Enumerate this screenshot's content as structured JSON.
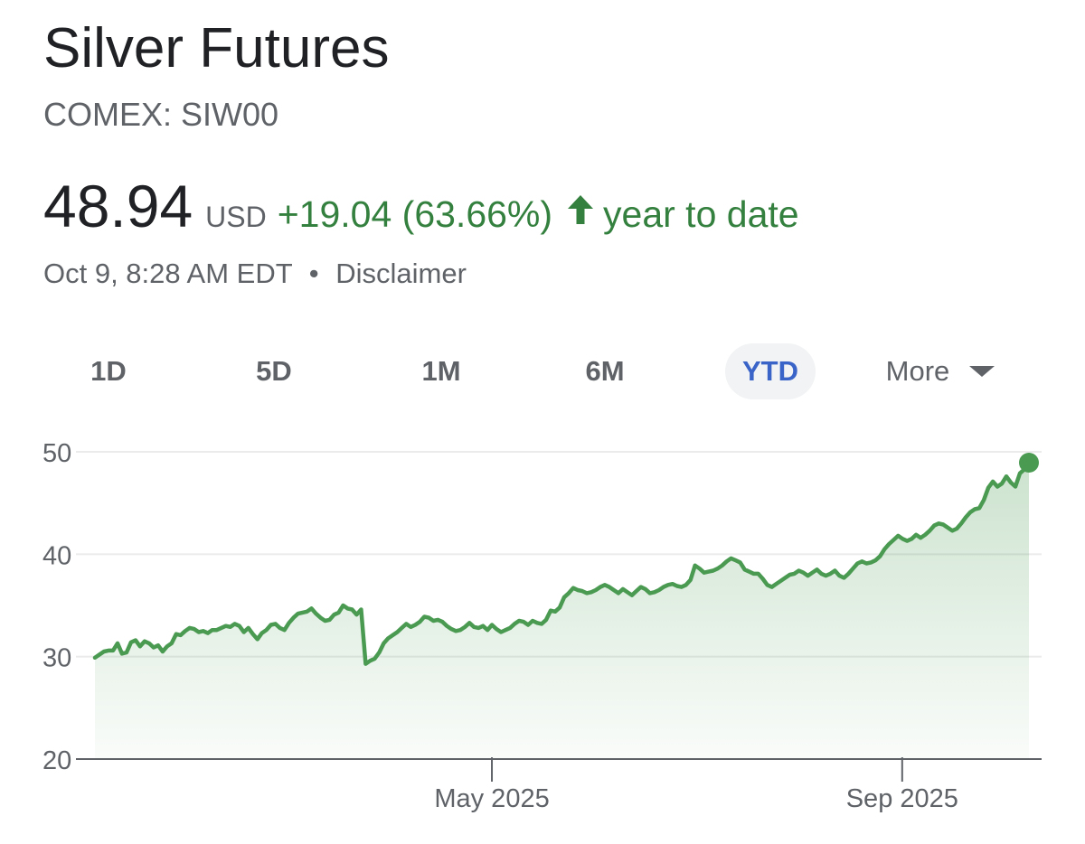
{
  "header": {
    "title": "Silver Futures",
    "ticker": "COMEX: SIW00"
  },
  "quote": {
    "price": "48.94",
    "currency": "USD",
    "change": "+19.04 (63.66%)",
    "period": "year to date",
    "timestamp": "Oct 9, 8:28 AM EDT",
    "separator": "•",
    "disclaimer": "Disclaimer"
  },
  "icons": {
    "change_arrow": "arrow-up-icon",
    "more_caret": "caret-down-icon"
  },
  "colors": {
    "positive": "#34803e",
    "line": "#4a9a52",
    "active_tab": "#3b64c8",
    "muted": "#5f6368"
  },
  "range_tabs": [
    {
      "label": "1D",
      "active": false
    },
    {
      "label": "5D",
      "active": false
    },
    {
      "label": "1M",
      "active": false
    },
    {
      "label": "6M",
      "active": false
    },
    {
      "label": "YTD",
      "active": true
    },
    {
      "label": "More",
      "active": false
    }
  ],
  "chart_data": {
    "type": "area",
    "title": "",
    "xlabel": "",
    "ylabel": "",
    "ylim": [
      20,
      50
    ],
    "yticks": [
      "20",
      "30",
      "40",
      "50"
    ],
    "xticks": [
      {
        "label": "May 2025",
        "date": "2025-05-01"
      },
      {
        "label": "Sep 2025",
        "date": "2025-09-01"
      }
    ],
    "x_start": "2025-01-02",
    "x_end": "2025-10-09",
    "grid": true,
    "series": [
      {
        "values": [
          29.9,
          30.2,
          30.5,
          30.6,
          30.6,
          31.3,
          30.3,
          30.4,
          31.4,
          31.6,
          31.0,
          31.5,
          31.3,
          30.9,
          31.1,
          30.5,
          31.0,
          31.3,
          32.2,
          32.1,
          32.5,
          32.8,
          32.7,
          32.4,
          32.5,
          32.3,
          32.6,
          32.6,
          32.8,
          33.0,
          32.9,
          33.2,
          33.0,
          32.4,
          32.8,
          32.2,
          31.7,
          32.3,
          32.6,
          33.1,
          33.2,
          32.8,
          32.6,
          33.3,
          33.8,
          34.2,
          34.3,
          34.4,
          34.7,
          34.2,
          33.8,
          33.5,
          33.6,
          34.1,
          34.3,
          35.0,
          34.7,
          34.6,
          34.1,
          34.6,
          29.3,
          29.6,
          29.8,
          30.4,
          31.3,
          31.8,
          32.1,
          32.4,
          32.8,
          33.2,
          32.9,
          33.1,
          33.4,
          33.9,
          33.8,
          33.5,
          33.6,
          33.4,
          33.0,
          32.7,
          32.5,
          32.6,
          32.9,
          33.3,
          32.9,
          32.8,
          33.0,
          32.6,
          33.1,
          32.7,
          32.4,
          32.6,
          32.8,
          33.2,
          33.5,
          33.4,
          33.1,
          33.5,
          33.3,
          33.2,
          33.6,
          34.5,
          34.4,
          34.8,
          35.8,
          36.2,
          36.7,
          36.5,
          36.4,
          36.2,
          36.3,
          36.5,
          36.8,
          37.0,
          36.8,
          36.5,
          36.2,
          36.6,
          36.3,
          36.0,
          36.4,
          36.8,
          36.6,
          36.2,
          36.3,
          36.5,
          36.8,
          37.0,
          37.1,
          36.9,
          36.8,
          37.0,
          37.5,
          38.9,
          38.6,
          38.2,
          38.3,
          38.4,
          38.6,
          38.9,
          39.3,
          39.6,
          39.4,
          39.2,
          38.5,
          38.3,
          38.1,
          38.1,
          37.6,
          37.0,
          36.8,
          37.1,
          37.4,
          37.7,
          38.0,
          38.1,
          38.4,
          38.2,
          37.9,
          38.2,
          38.5,
          38.1,
          37.9,
          38.1,
          38.4,
          37.9,
          37.7,
          38.1,
          38.6,
          39.1,
          39.3,
          39.1,
          39.2,
          39.4,
          39.8,
          40.5,
          41.0,
          41.4,
          41.8,
          41.5,
          41.3,
          41.5,
          41.9,
          41.6,
          41.9,
          42.3,
          42.8,
          43.0,
          42.9,
          42.6,
          42.3,
          42.5,
          43.0,
          43.6,
          44.1,
          44.4,
          44.5,
          45.3,
          46.5,
          47.1,
          46.6,
          46.9,
          47.6,
          47.0,
          46.6,
          47.9,
          48.3,
          48.94
        ]
      }
    ],
    "last_value": 48.94
  }
}
